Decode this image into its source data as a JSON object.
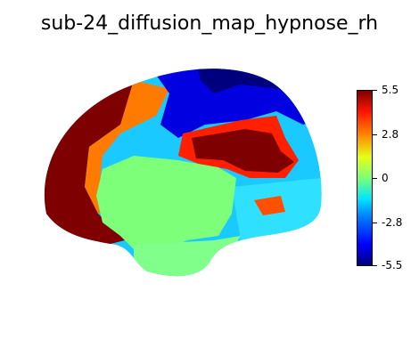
{
  "title": "sub-24_diffusion_map_hypnose_rh",
  "colorbar": {
    "colormap": "jet",
    "min": -5.5,
    "max": 5.5,
    "ticks": [
      "5.5",
      "2.8",
      "0",
      "-2.8",
      "-5.5"
    ]
  },
  "image": {
    "subject": "right-hemisphere medial cortical surface map",
    "dominant_colors": [
      "#7f0000",
      "#0000ff",
      "#80ff80",
      "#ff8c00",
      "#00bfff"
    ]
  }
}
